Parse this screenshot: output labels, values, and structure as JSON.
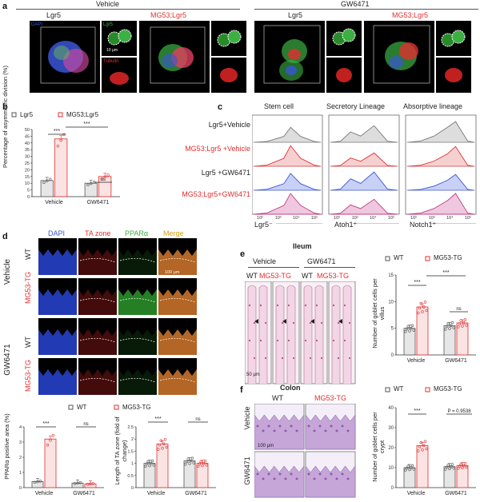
{
  "panel_a": {
    "label": "a",
    "group_vehicle": "Vehicle",
    "group_gw": "GW6471",
    "col_lgr5": "Lgr5",
    "col_mg53": "MG53;Lgr5",
    "ch_dapi": "DAPI",
    "ch_lgr5": "Lgr5",
    "ch_tubulin": "Tubulin",
    "scalebar": "10 μm"
  },
  "panel_b": {
    "label": "b",
    "legend": [
      "Lgr5",
      "MG53;Lgr5"
    ],
    "ylabel": "Percentage of asymmetric division (%)",
    "sig": [
      "***",
      "***",
      "ns"
    ],
    "chart_data": {
      "type": "bar",
      "categories": [
        "Vehicle",
        "GW6471"
      ],
      "series": [
        {
          "name": "Lgr5",
          "values": [
            12,
            10
          ]
        },
        {
          "name": "MG53;Lgr5",
          "values": [
            43,
            15
          ]
        }
      ],
      "ylim": [
        0,
        50
      ],
      "yticks": [
        0,
        5,
        10,
        15,
        20,
        25,
        30,
        35,
        40,
        45,
        50
      ]
    }
  },
  "panel_c": {
    "label": "c",
    "col_titles": [
      "Stem cell",
      "Secretory Lineage",
      "Absorptive lineage"
    ],
    "rows": [
      "Lgr5+Vehicle",
      "MG53;Lgr5 +Vehicle",
      "Lgr5 +GW6471",
      "MG53;Lgr5+GW6471"
    ],
    "xlabels": [
      "Lgr5⁻",
      "Atoh1⁺",
      "Notch1⁺"
    ],
    "ticks": [
      "10²",
      "10³",
      "10⁴",
      "10⁵"
    ]
  },
  "panel_d": {
    "label": "d",
    "channels": [
      "DAPI",
      "TA zone",
      "PPARα",
      "Merge"
    ],
    "group_vehicle": "Vehicle",
    "group_gw": "GW6471",
    "row_labels": [
      "WT",
      "MG53-TG",
      "WT",
      "MG53-TG"
    ],
    "scalebar": "100 μm",
    "legend": [
      "WT",
      "MG53-TG"
    ],
    "sig_left": [
      "***",
      "ns"
    ],
    "sig_right": [
      "***",
      "ns"
    ],
    "ylabel_left": "PPARα positive area (%)",
    "ylabel_right": "Length of TA zone (fold of change)",
    "chart_left": {
      "type": "bar",
      "categories": [
        "Vehicle",
        "GW6471"
      ],
      "series": [
        {
          "name": "WT",
          "values": [
            0.4,
            0.3
          ]
        },
        {
          "name": "MG53-TG",
          "values": [
            3.2,
            0.25
          ]
        }
      ],
      "ylim": [
        0,
        4
      ],
      "yticks": [
        0,
        1,
        2,
        3,
        4
      ]
    },
    "chart_right": {
      "type": "bar",
      "categories": [
        "Vehicle",
        "GW6471"
      ],
      "series": [
        {
          "name": "WT",
          "values": [
            1.0,
            1.1
          ]
        },
        {
          "name": "MG53-TG",
          "values": [
            1.8,
            1.0
          ]
        }
      ],
      "ylim": [
        0,
        2.5
      ],
      "yticks": [
        0.0,
        0.5,
        1.0,
        1.5,
        2.0,
        2.5
      ]
    }
  },
  "panel_e": {
    "label": "e",
    "title": "Ileum",
    "group_vehicle": "Vehicle",
    "group_gw": "GW6471",
    "col_labels": [
      "WT",
      "MG53-TG",
      "WT",
      "MG53-TG"
    ],
    "scalebar": "50 μm",
    "legend": [
      "WT",
      "MG53-TG"
    ],
    "sig": [
      "***",
      "***",
      "ns"
    ],
    "ylabel": "Number of goblet cells per villus",
    "chart_data": {
      "type": "bar",
      "categories": [
        "Vehicle",
        "GW6471"
      ],
      "series": [
        {
          "name": "WT",
          "values": [
            5,
            5.5
          ]
        },
        {
          "name": "MG53-TG",
          "values": [
            9,
            6
          ]
        }
      ],
      "ylim": [
        0,
        15
      ],
      "yticks": [
        0,
        5,
        10,
        15
      ]
    }
  },
  "panel_f": {
    "label": "f",
    "title": "Colon",
    "col_labels": [
      "WT",
      "MG53-TG"
    ],
    "row_labels": [
      "Vehicle",
      "GW6471"
    ],
    "scalebar": "100 μm",
    "legend": [
      "WT",
      "MG53-TG"
    ],
    "sig": [
      "***",
      "P = 0.9538"
    ],
    "ylabel": "Number of goblet cells per crypt",
    "chart_data": {
      "type": "bar",
      "categories": [
        "Vehicle",
        "GW6471"
      ],
      "series": [
        {
          "name": "WT",
          "values": [
            10,
            10.5
          ]
        },
        {
          "name": "MG53-TG",
          "values": [
            21,
            11
          ]
        }
      ],
      "ylim": [
        0,
        40
      ],
      "yticks": [
        0,
        10,
        20,
        30,
        40
      ]
    }
  },
  "colors": {
    "wt": "#555555",
    "tg": "#e03030",
    "dapi": "#3a55d6",
    "green": "#3cb043"
  }
}
